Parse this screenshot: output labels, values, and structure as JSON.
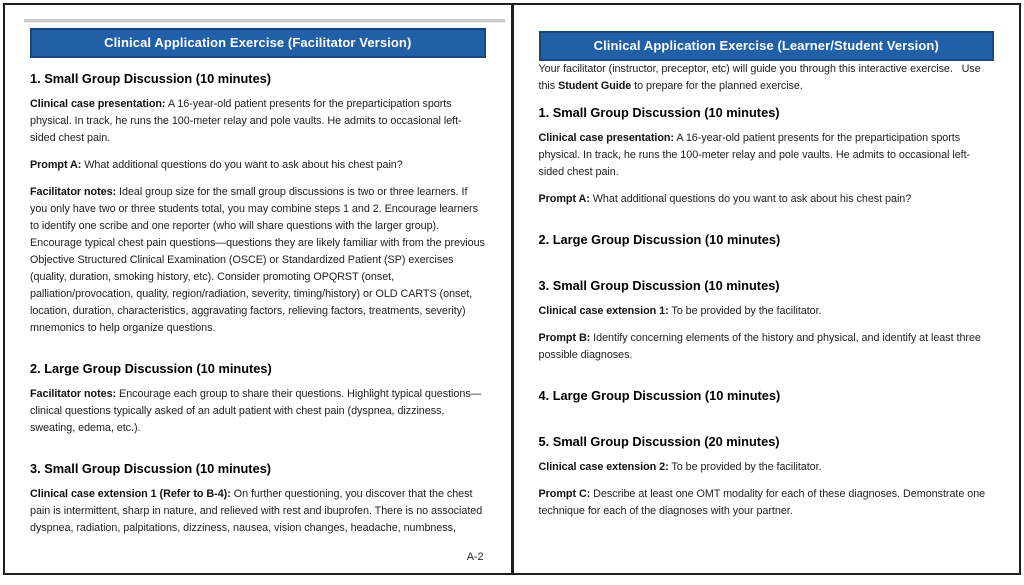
{
  "ui": {
    "colors": {
      "banner_blue": "#2160A7",
      "banner_border": "#17477E",
      "frame_border": "#1e1e1e",
      "page_break_grey": "#cbcbcb"
    }
  },
  "facilitator": {
    "banner": "Clinical Application Exercise (Facilitator Version)",
    "s1_heading": "1. Small Group Discussion (10 minutes)",
    "case_label": "Clinical case presentation:",
    "case_text": " A 16-year-old patient presents for the preparticipation sports physical. In track, he runs the 100-meter relay and pole vaults. He admits to occasional left-sided chest pain.",
    "promptA_label": "Prompt A:",
    "promptA_text": " What additional questions do you want to ask about his chest pain?",
    "notes1_label": "Facilitator notes:",
    "notes1_text": " Ideal group size for the small group discussions is two or three learners. If you only have two or three students total, you may combine steps 1 and 2. Encourage learners to identify one scribe and one reporter (who will share questions with the larger group). Encourage typical chest pain questions—questions they are likely familiar with from the previous Objective Structured Clinical Examination (OSCE) or Standardized Patient (SP) exercises (quality, duration, smoking history, etc). Consider promoting OPQRST (onset, palliation/provocation, quality, region/radiation, severity, timing/history) or OLD CARTS (onset, location, duration, characteristics, aggravating factors, relieving factors, treatments, severity) mnemonics to help organize questions.",
    "s2_heading": "2. Large Group Discussion (10 minutes)",
    "notes2_label": "Facilitator notes:",
    "notes2_text": " Encourage each group to share their questions. Highlight typical questions—clinical questions typically asked of an adult patient with chest pain (dyspnea, dizziness, sweating, edema, etc.).",
    "s3_heading": "3. Small Group Discussion (10 minutes)",
    "ext1_label": "Clinical case extension 1 (Refer to B-4):",
    "ext1_text": " On further questioning, you discover that the chest pain is intermittent, sharp in nature, and relieved with rest and ibuprofen. There is no associated dyspnea, radiation, palpitations, dizziness, nausea, vision changes, headache, numbness,",
    "page_number": "A-2"
  },
  "learner": {
    "banner": "Clinical Application Exercise (Learner/Student Version)",
    "intro_before": "Your facilitator (instructor, preceptor, etc) will guide you through this interactive exercise.   Use this ",
    "intro_bold": "Student Guide",
    "intro_after": " to prepare for the planned exercise.",
    "s1_heading": "1. Small Group Discussion (10 minutes)",
    "case_label": "Clinical case presentation:",
    "case_text": " A 16-year-old patient presents for the preparticipation sports physical. In track, he runs the 100-meter relay and pole vaults. He admits to occasional left-sided chest pain.",
    "promptA_label": "Prompt A:",
    "promptA_text": " What additional questions do you want to ask about his chest pain?",
    "s2_heading": "2. Large Group Discussion (10 minutes)",
    "s3_heading": "3. Small Group Discussion (10 minutes)",
    "ext1_label": "Clinical case extension 1:",
    "ext1_text": " To be provided by the facilitator.",
    "promptB_label": "Prompt B:",
    "promptB_text": " Identify concerning elements of the history and physical, and identify at least three possible diagnoses.",
    "s4_heading": "4. Large Group Discussion (10 minutes)",
    "s5_heading": "5. Small Group Discussion (20 minutes)",
    "ext2_label": "Clinical case extension 2:",
    "ext2_text": " To be provided by the facilitator.",
    "promptC_label": "Prompt C:",
    "promptC_text": " Describe at least one OMT modality for each of these diagnoses. Demonstrate one technique for each of the diagnoses with your partner."
  }
}
